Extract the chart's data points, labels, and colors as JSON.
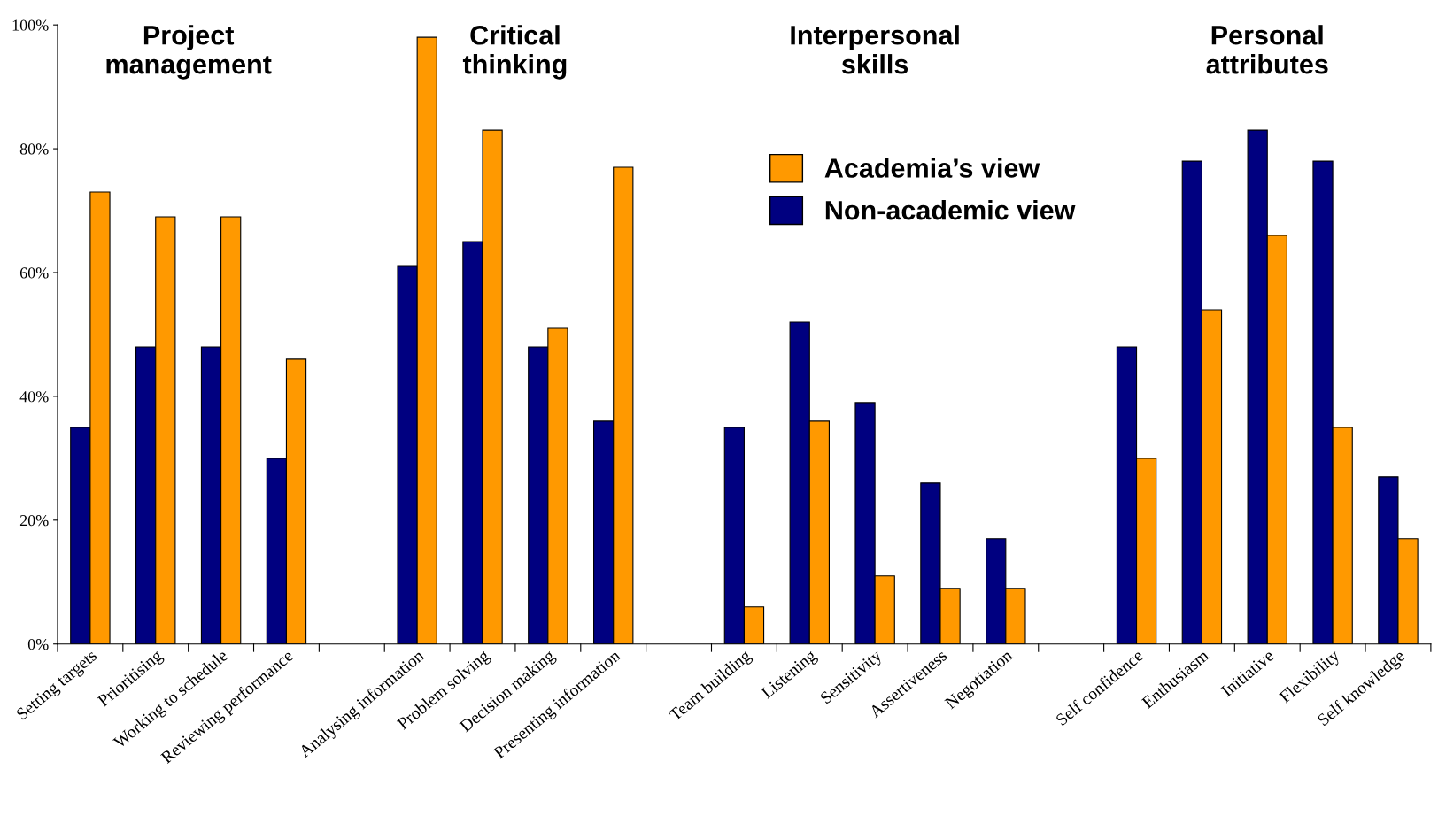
{
  "chart_data": {
    "type": "bar",
    "categories": [
      "Setting targets",
      "Prioritising",
      "Working to schedule",
      "Reviewing performance",
      null,
      "Analysing information",
      "Problem solving",
      "Decision making",
      "Presenting information",
      null,
      "Team building",
      "Listening",
      "Sensitivity",
      "Assertiveness",
      "Negotiation",
      null,
      "Self confidence",
      "Enthusiasm",
      "Initiative",
      "Flexibility",
      "Self knowledge"
    ],
    "series": [
      {
        "name": "Non-academic view",
        "color": "#000080",
        "values": [
          35,
          48,
          48,
          30,
          null,
          61,
          65,
          48,
          36,
          null,
          35,
          52,
          39,
          26,
          17,
          null,
          48,
          78,
          83,
          78,
          27
        ]
      },
      {
        "name": "Academia’s view",
        "color": "#ff9900",
        "values": [
          73,
          69,
          69,
          46,
          null,
          98,
          83,
          51,
          77,
          null,
          6,
          36,
          11,
          9,
          9,
          null,
          30,
          54,
          66,
          35,
          17
        ]
      }
    ],
    "annotations": [
      "Project\nmanagement",
      "Critical\nthinking",
      "Interpersonal\nskills",
      "Personal\nattributes"
    ],
    "ylim": [
      0,
      100
    ],
    "yticks": [
      {
        "value": 0,
        "label": "0%"
      },
      {
        "value": 20,
        "label": "20%"
      },
      {
        "value": 40,
        "label": "40%"
      },
      {
        "value": 60,
        "label": "60%"
      },
      {
        "value": 80,
        "label": "80%"
      },
      {
        "value": 100,
        "label": "100%"
      }
    ],
    "grid": false,
    "legend": "top"
  }
}
